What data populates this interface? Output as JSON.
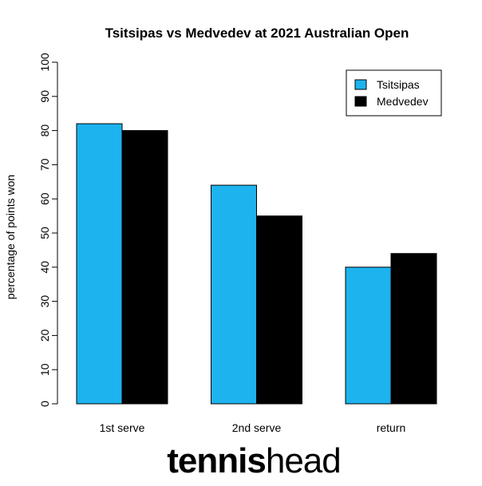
{
  "chart_data": {
    "type": "bar",
    "title": "Tsitsipas vs Medvedev at 2021 Australian Open",
    "xlabel": "",
    "ylabel": "percentage of points won",
    "ylim": [
      0,
      100
    ],
    "yticks": [
      0,
      10,
      20,
      30,
      40,
      50,
      60,
      70,
      80,
      90,
      100
    ],
    "categories": [
      "1st serve",
      "2nd serve",
      "return"
    ],
    "series": [
      {
        "name": "Tsitsipas",
        "color": "#1db3ee",
        "values": [
          82,
          64,
          40
        ]
      },
      {
        "name": "Medvedev",
        "color": "#000000",
        "values": [
          80,
          55,
          44
        ]
      }
    ],
    "legend_position": "top-right",
    "grid": false
  },
  "logo": {
    "part1": "tennis",
    "part2": "head"
  }
}
